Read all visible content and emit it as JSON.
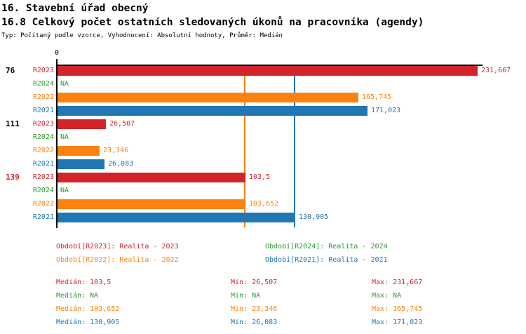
{
  "header": {
    "title": "16. Stavební úřad obecný",
    "subtitle": "16.8 Celkový počet ostatních sledovaných úkonů na pracovníka (agendy)",
    "meta": "Typ: Počítaný podle vzorce, Vyhodnocení: Absolutní hodnoty, Průměr: Medián"
  },
  "colors": {
    "series": {
      "R2023": "#d3242b",
      "R2024": "#2d9b2d",
      "R2022": "#fd810e",
      "R2021": "#2077b4"
    },
    "axis": "#000000",
    "group_label_default": "#000000",
    "group_label_alert": "#d3242b"
  },
  "chart_data": {
    "type": "bar",
    "orientation": "horizontal",
    "axis_origin_label": "0",
    "series_order": [
      "R2023",
      "R2024",
      "R2022",
      "R2021"
    ],
    "groups": [
      {
        "label": "76",
        "label_style": "default",
        "bars": [
          {
            "series": "R2023",
            "value": 231.667,
            "display": "231,667"
          },
          {
            "series": "R2024",
            "value": null,
            "display": "NA"
          },
          {
            "series": "R2022",
            "value": 165.745,
            "display": "165,745"
          },
          {
            "series": "R2021",
            "value": 171.023,
            "display": "171,023"
          }
        ]
      },
      {
        "label": "111",
        "label_style": "default",
        "bars": [
          {
            "series": "R2023",
            "value": 26.507,
            "display": "26,507"
          },
          {
            "series": "R2024",
            "value": null,
            "display": "NA"
          },
          {
            "series": "R2022",
            "value": 23.346,
            "display": "23,346"
          },
          {
            "series": "R2021",
            "value": 26.083,
            "display": "26,083"
          }
        ]
      },
      {
        "label": "139",
        "label_style": "alert",
        "bars": [
          {
            "series": "R2023",
            "value": 103.5,
            "display": "103,5"
          },
          {
            "series": "R2024",
            "value": null,
            "display": "NA"
          },
          {
            "series": "R2022",
            "value": 103.652,
            "display": "103,652"
          },
          {
            "series": "R2021",
            "value": 130.905,
            "display": "130,905"
          }
        ]
      }
    ],
    "median_lines": [
      {
        "series": "R2022",
        "value": 103.652
      },
      {
        "series": "R2021",
        "value": 130.905
      }
    ]
  },
  "legend": {
    "items": [
      {
        "series": "R2023",
        "label": "Období[R2023]: Realita - 2023"
      },
      {
        "series": "R2024",
        "label": "Období[R2024]: Realita - 2024"
      },
      {
        "series": "R2022",
        "label": "Období[R2022]: Realita - 2022"
      },
      {
        "series": "R2021",
        "label": "Období[R2021]: Realita - 2021"
      }
    ]
  },
  "stats": {
    "labels": {
      "median": "Medián",
      "min": "Min",
      "max": "Max"
    },
    "rows": [
      {
        "series": "R2023",
        "median": "103,5",
        "min": "26,507",
        "max": "231,667"
      },
      {
        "series": "R2024",
        "median": "NA",
        "min": "NA",
        "max": "NA"
      },
      {
        "series": "R2022",
        "median": "103,652",
        "min": "23,346",
        "max": "165,745"
      },
      {
        "series": "R2021",
        "median": "130,905",
        "min": "26,083",
        "max": "171,023"
      }
    ]
  }
}
